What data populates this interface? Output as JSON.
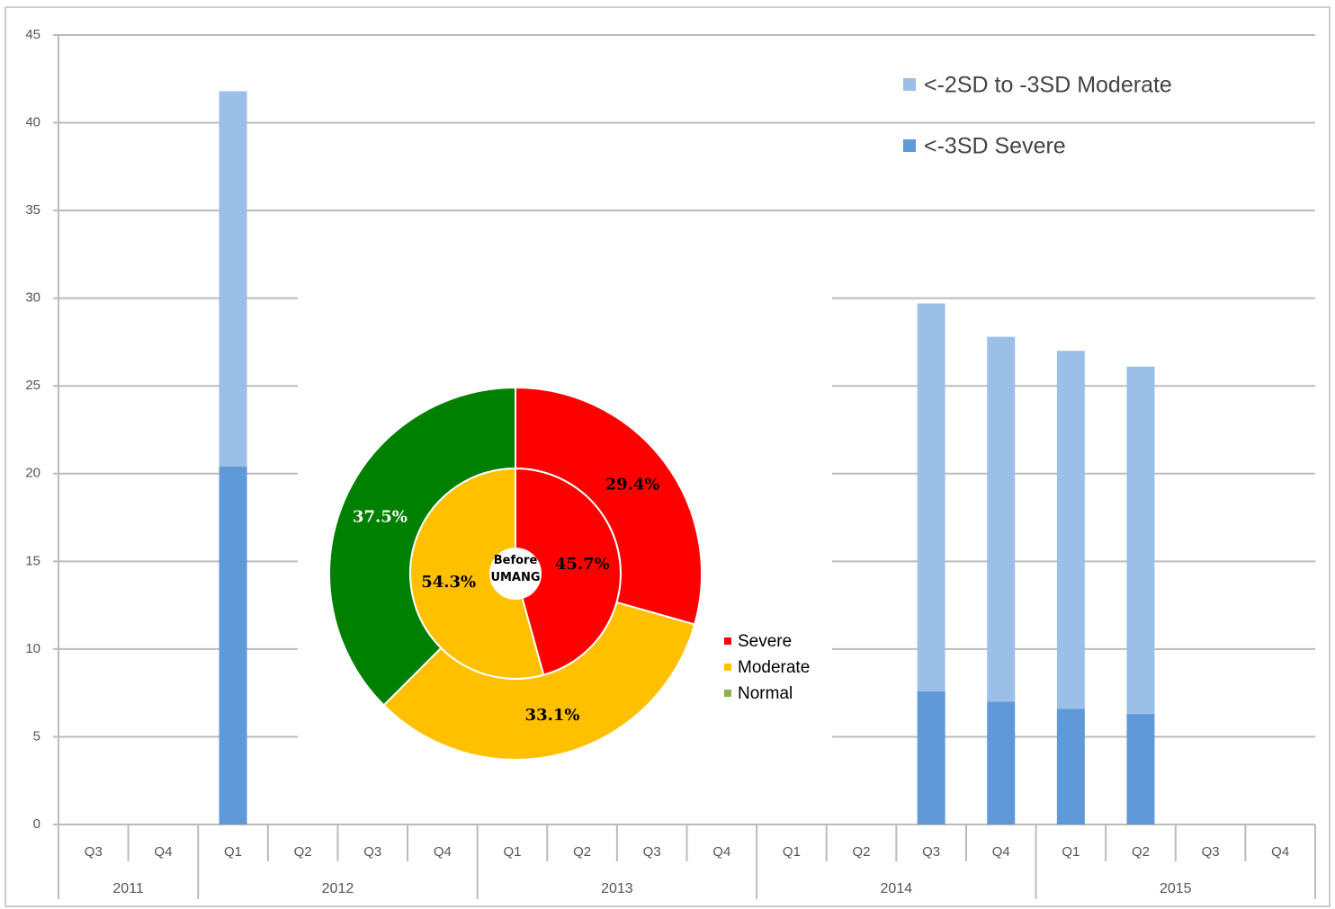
{
  "chart_data": [
    {
      "type": "stacked_bar",
      "categories": [
        "Q3",
        "Q4",
        "Q1",
        "Q2",
        "Q3",
        "Q4",
        "Q1",
        "Q2",
        "Q3",
        "Q4",
        "Q1",
        "Q2",
        "Q3",
        "Q4",
        "Q1",
        "Q2",
        "Q3",
        "Q4"
      ],
      "category_groups": [
        "2011",
        "2012",
        "2013",
        "2014",
        "2015"
      ],
      "group_spans": [
        2,
        4,
        4,
        4,
        4
      ],
      "series": [
        {
          "name": "<-3SD Severe",
          "color": "#5f99d9",
          "values": [
            null,
            null,
            20.4,
            null,
            null,
            null,
            null,
            null,
            null,
            null,
            null,
            null,
            7.6,
            7.0,
            6.6,
            6.3,
            null,
            null
          ]
        },
        {
          "name": "<-2SD to -3SD Moderate",
          "color": "#9cbfe8",
          "values": [
            null,
            null,
            21.4,
            null,
            null,
            null,
            null,
            null,
            null,
            null,
            null,
            null,
            22.1,
            20.8,
            20.4,
            19.8,
            null,
            null
          ]
        }
      ],
      "ylim": [
        0,
        45
      ],
      "yticks": [
        0,
        5,
        10,
        15,
        20,
        25,
        30,
        35,
        40,
        45
      ],
      "grid": true
    },
    {
      "type": "donut",
      "center_label": "Before UMANG",
      "categories": [
        "Severe",
        "Moderate",
        "Normal"
      ],
      "colors": [
        "#ff0000",
        "#ffc000",
        "#008000"
      ],
      "legend_colors": [
        "#ff0000",
        "#ffc000",
        "#8db04a"
      ],
      "label_colors": [
        "#000000",
        "#000000",
        "#ffffff"
      ],
      "rings": [
        {
          "values": [
            45.7,
            54.3
          ],
          "value_labels": [
            "45.7%",
            "54.3%"
          ]
        },
        {
          "values": [
            29.4,
            33.1,
            37.5
          ],
          "value_labels": [
            "29.4%",
            "33.1%",
            "37.5%"
          ]
        }
      ]
    }
  ]
}
